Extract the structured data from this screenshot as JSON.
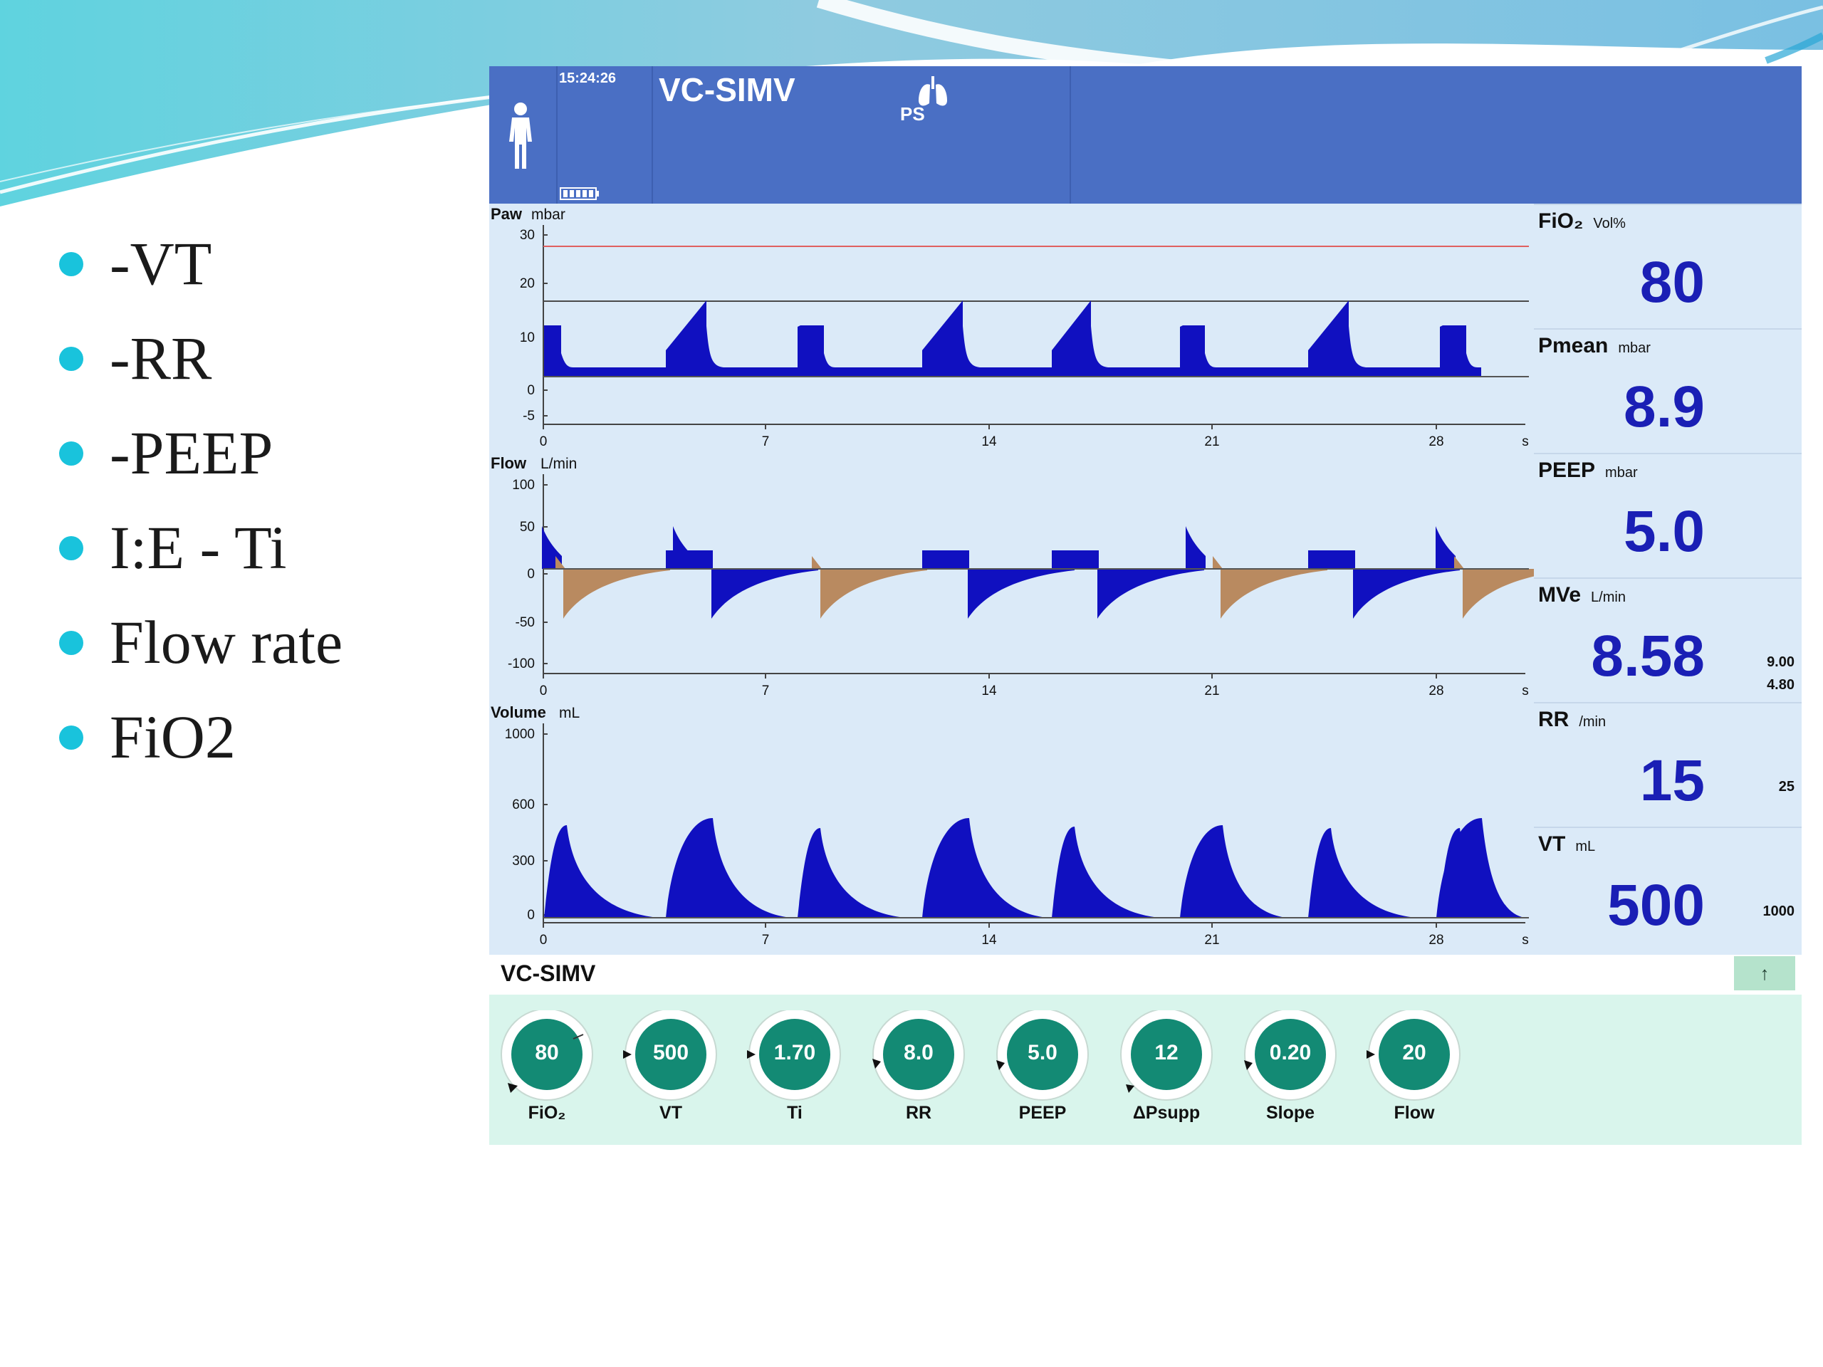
{
  "bullets": [
    "-VT",
    "-RR",
    "-PEEP",
    "I:E - Ti",
    "Flow rate",
    "FiO2"
  ],
  "colors": {
    "header": "#4a6fc4",
    "graph_bg": "#dbeaf8",
    "inspiratory_fill": "#1010c0",
    "expiratory_fill": "#b98a60",
    "value_text": "#1a1fb5",
    "knob_fill": "#138a74",
    "knob_panel": "#d9f5ec",
    "bullet_dot": "#19c3dc"
  },
  "header": {
    "time": "15:24:26",
    "mode": "VC-SIMV",
    "breath_indicator": "PS",
    "icons": [
      "person-icon",
      "battery-icon",
      "lungs-icon"
    ]
  },
  "graphs": {
    "x_axis_ticks": [
      "0",
      "7",
      "14",
      "21",
      "28",
      "s"
    ],
    "paw": {
      "title": "Paw",
      "unit": "mbar",
      "y_ticks": [
        "30",
        "20",
        "10",
        "0",
        "-5"
      ]
    },
    "flow": {
      "title": "Flow",
      "unit": "L/min",
      "y_ticks": [
        "100",
        "50",
        "0",
        "-50",
        "-100"
      ]
    },
    "volume": {
      "title": "Volume",
      "unit": "mL",
      "y_ticks": [
        "1000",
        "600",
        "300",
        "0"
      ]
    }
  },
  "params": [
    {
      "name": "FiO₂",
      "unit": "Vol%",
      "value": "80",
      "limits": []
    },
    {
      "name": "Pmean",
      "unit": "mbar",
      "value": "8.9",
      "limits": []
    },
    {
      "name": "PEEP",
      "unit": "mbar",
      "value": "5.0",
      "limits": []
    },
    {
      "name": "MVe",
      "unit": "L/min",
      "value": "8.58",
      "limits": [
        "9.00",
        "4.80"
      ]
    },
    {
      "name": "RR",
      "unit": "/min",
      "value": "15",
      "limits": [
        "25"
      ]
    },
    {
      "name": "VT",
      "unit": "mL",
      "value": "500",
      "limits": [
        "1000"
      ]
    }
  ],
  "mode_bar": {
    "label": "VC-SIMV",
    "button": "↑"
  },
  "knobs": [
    {
      "value": "80",
      "label": "FiO₂"
    },
    {
      "value": "500",
      "label": "VT"
    },
    {
      "value": "1.70",
      "label": "Ti"
    },
    {
      "value": "8.0",
      "label": "RR"
    },
    {
      "value": "5.0",
      "label": "PEEP"
    },
    {
      "value": "12",
      "label": "ΔPsupp"
    },
    {
      "value": "0.20",
      "label": "Slope"
    },
    {
      "value": "20",
      "label": "Flow"
    }
  ]
}
